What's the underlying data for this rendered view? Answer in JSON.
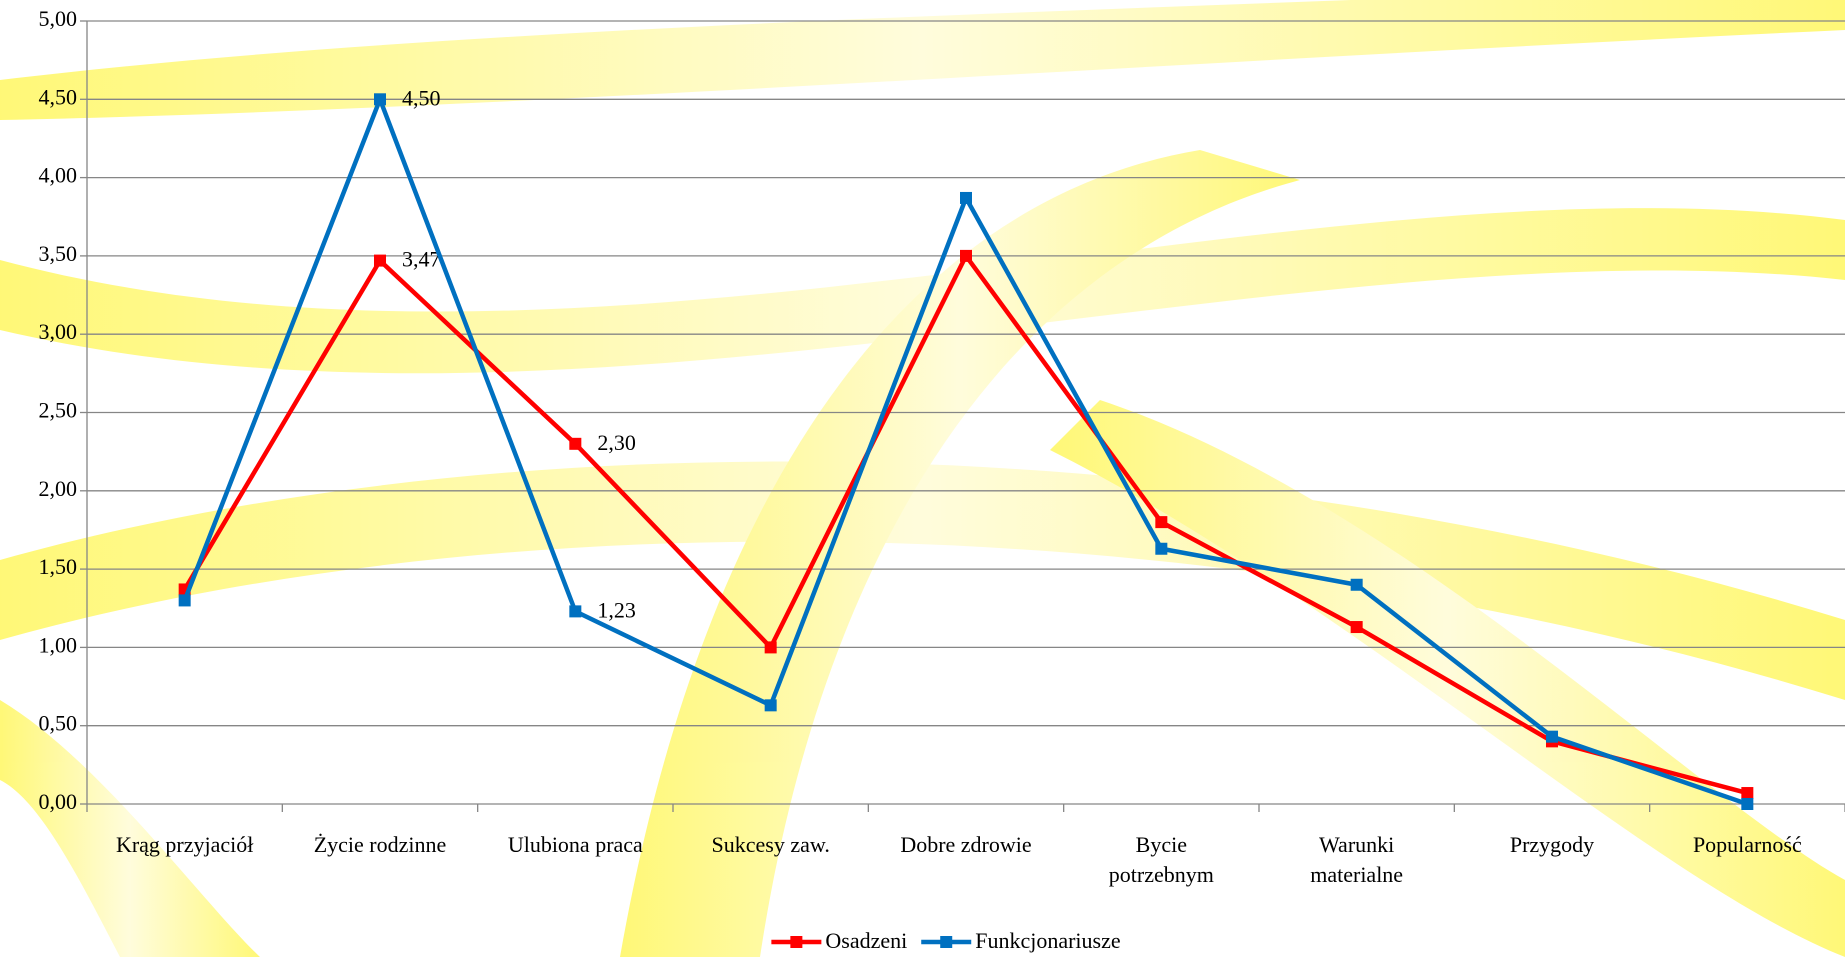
{
  "chart_data": {
    "type": "line",
    "categories": [
      "Krąg przyjaciół",
      "Życie rodzinne",
      "Ulubiona praca",
      "Sukcesy zaw.",
      "Dobre zdrowie",
      "Bycie\npotrzebnym",
      "Warunki\nmaterialne",
      "Przygody",
      "Popularność"
    ],
    "series": [
      {
        "name": "Osadzeni",
        "color": "#ff0000",
        "values": [
          1.37,
          3.47,
          2.3,
          1.0,
          3.5,
          1.8,
          1.13,
          0.4,
          0.07
        ],
        "value_labels": [
          null,
          "3,47",
          "2,30",
          null,
          null,
          null,
          null,
          null,
          null
        ]
      },
      {
        "name": "Funkcjonariusze",
        "color": "#0070c0",
        "values": [
          1.3,
          4.5,
          1.23,
          0.63,
          3.87,
          1.63,
          1.4,
          0.43,
          0.0
        ],
        "value_labels": [
          null,
          "4,50",
          "1,23",
          null,
          null,
          null,
          null,
          null,
          null
        ]
      }
    ],
    "ylim": [
      0,
      5
    ],
    "yticks": [
      {
        "value": 0,
        "label": "0,00"
      },
      {
        "value": 0.5,
        "label": "0,50"
      },
      {
        "value": 1,
        "label": "1,00"
      },
      {
        "value": 1.5,
        "label": "1,50"
      },
      {
        "value": 2,
        "label": "2,00"
      },
      {
        "value": 2.5,
        "label": "2,50"
      },
      {
        "value": 3,
        "label": "3,00"
      },
      {
        "value": 3.5,
        "label": "3,50"
      },
      {
        "value": 4,
        "label": "4,00"
      },
      {
        "value": 4.5,
        "label": "4,50"
      },
      {
        "value": 5,
        "label": "5,00"
      }
    ],
    "grid": true,
    "legend": "bottom"
  }
}
